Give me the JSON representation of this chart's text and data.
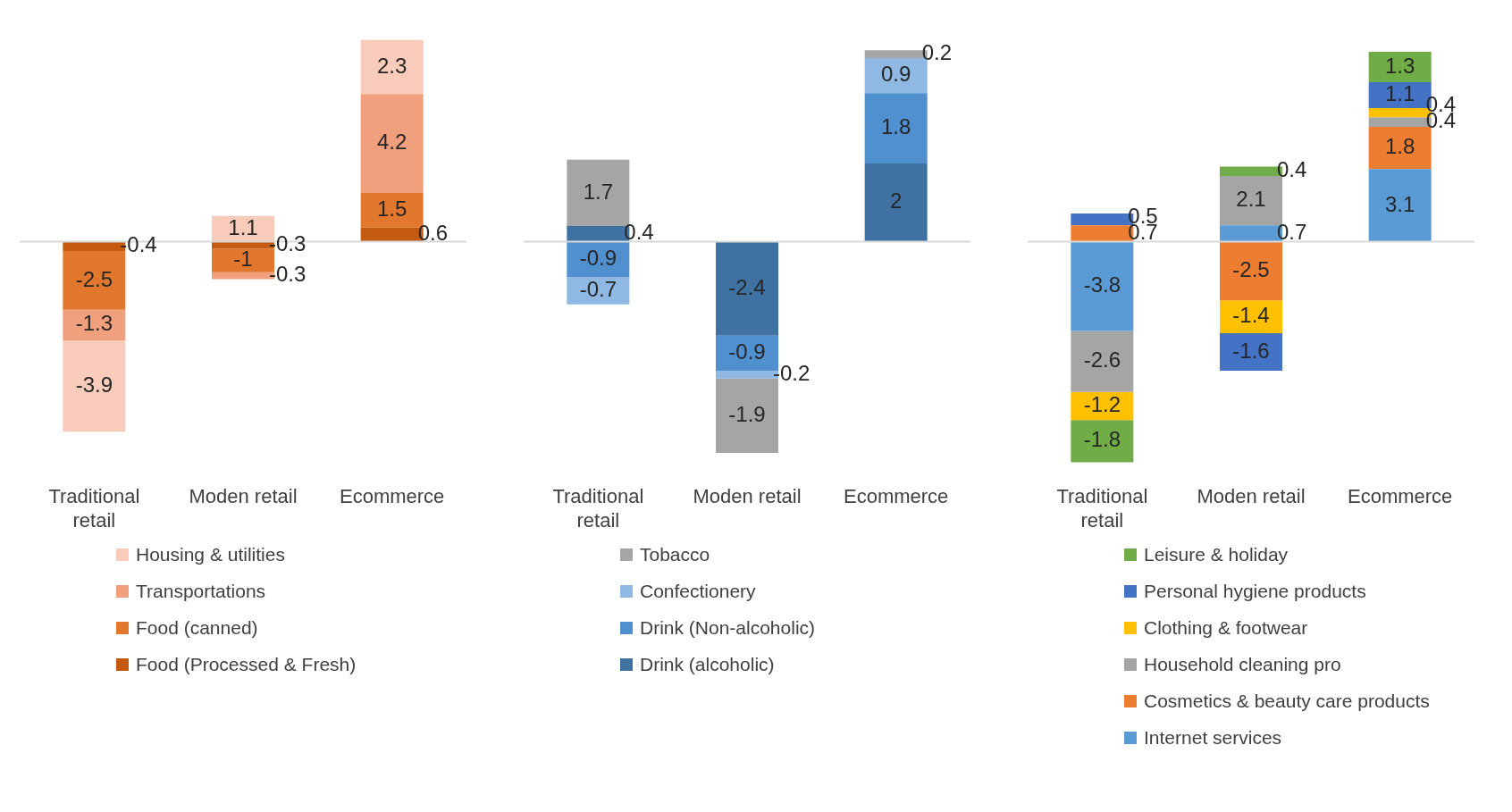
{
  "chart_data": [
    {
      "type": "bar",
      "stacked": true,
      "data_labels": true,
      "legend": "bottom",
      "tick_labels": "x",
      "categories": [
        "Traditional retail",
        "Moden retail",
        "Ecommerce"
      ],
      "series": [
        {
          "name": "Food (Processed & Fresh)",
          "color": "#c55a11",
          "values": [
            -0.4,
            -0.3,
            0.6
          ]
        },
        {
          "name": "Food (canned)",
          "color": "#e2782e",
          "values": [
            -2.5,
            -1,
            1.5
          ]
        },
        {
          "name": "Transportations",
          "color": "#f0a07c",
          "values": [
            -1.3,
            -0.3,
            4.2
          ]
        },
        {
          "name": "Housing & utilities",
          "color": "#f8cbbb",
          "values": [
            -3.9,
            1.1,
            2.3
          ]
        }
      ]
    },
    {
      "type": "bar",
      "stacked": true,
      "data_labels": true,
      "legend": "bottom",
      "tick_labels": "x",
      "categories": [
        "Traditional retail",
        "Moden retail",
        "Ecommerce"
      ],
      "series": [
        {
          "name": "Drink (alcoholic)",
          "color": "#3f72a3",
          "values": [
            0.4,
            -2.4,
            2
          ]
        },
        {
          "name": "Drink (Non-alcoholic)",
          "color": "#5190cf",
          "values": [
            -0.9,
            -0.9,
            1.8
          ]
        },
        {
          "name": "Confectionery",
          "color": "#8fb8e3",
          "values": [
            -0.7,
            -0.2,
            0.9
          ]
        },
        {
          "name": "Tobacco",
          "color": "#a5a5a5",
          "values": [
            1.7,
            -1.9,
            0.2
          ]
        }
      ]
    },
    {
      "type": "bar",
      "stacked": true,
      "data_labels": true,
      "legend": "bottom",
      "tick_labels": "x",
      "categories": [
        "Traditional retail",
        "Moden retail",
        "Ecommerce"
      ],
      "series": [
        {
          "name": "Internet services",
          "color": "#5b9bd5",
          "values": [
            -3.8,
            0.7,
            3.1
          ]
        },
        {
          "name": "Cosmetics & beauty care products",
          "color": "#ed7d31",
          "values": [
            0.7,
            -2.5,
            1.8
          ]
        },
        {
          "name": "Household cleaning pro",
          "color": "#a5a5a5",
          "values": [
            -2.6,
            2.1,
            0.4
          ]
        },
        {
          "name": "Clothing & footwear",
          "color": "#ffc000",
          "values": [
            -1.2,
            -1.4,
            0.4
          ]
        },
        {
          "name": "Personal hygiene products",
          "color": "#4472c4",
          "values": [
            0.5,
            -1.6,
            1.1
          ]
        },
        {
          "name": "Leisure & holiday",
          "color": "#70ad47",
          "values": [
            -1.8,
            0.4,
            1.3
          ]
        }
      ]
    }
  ]
}
